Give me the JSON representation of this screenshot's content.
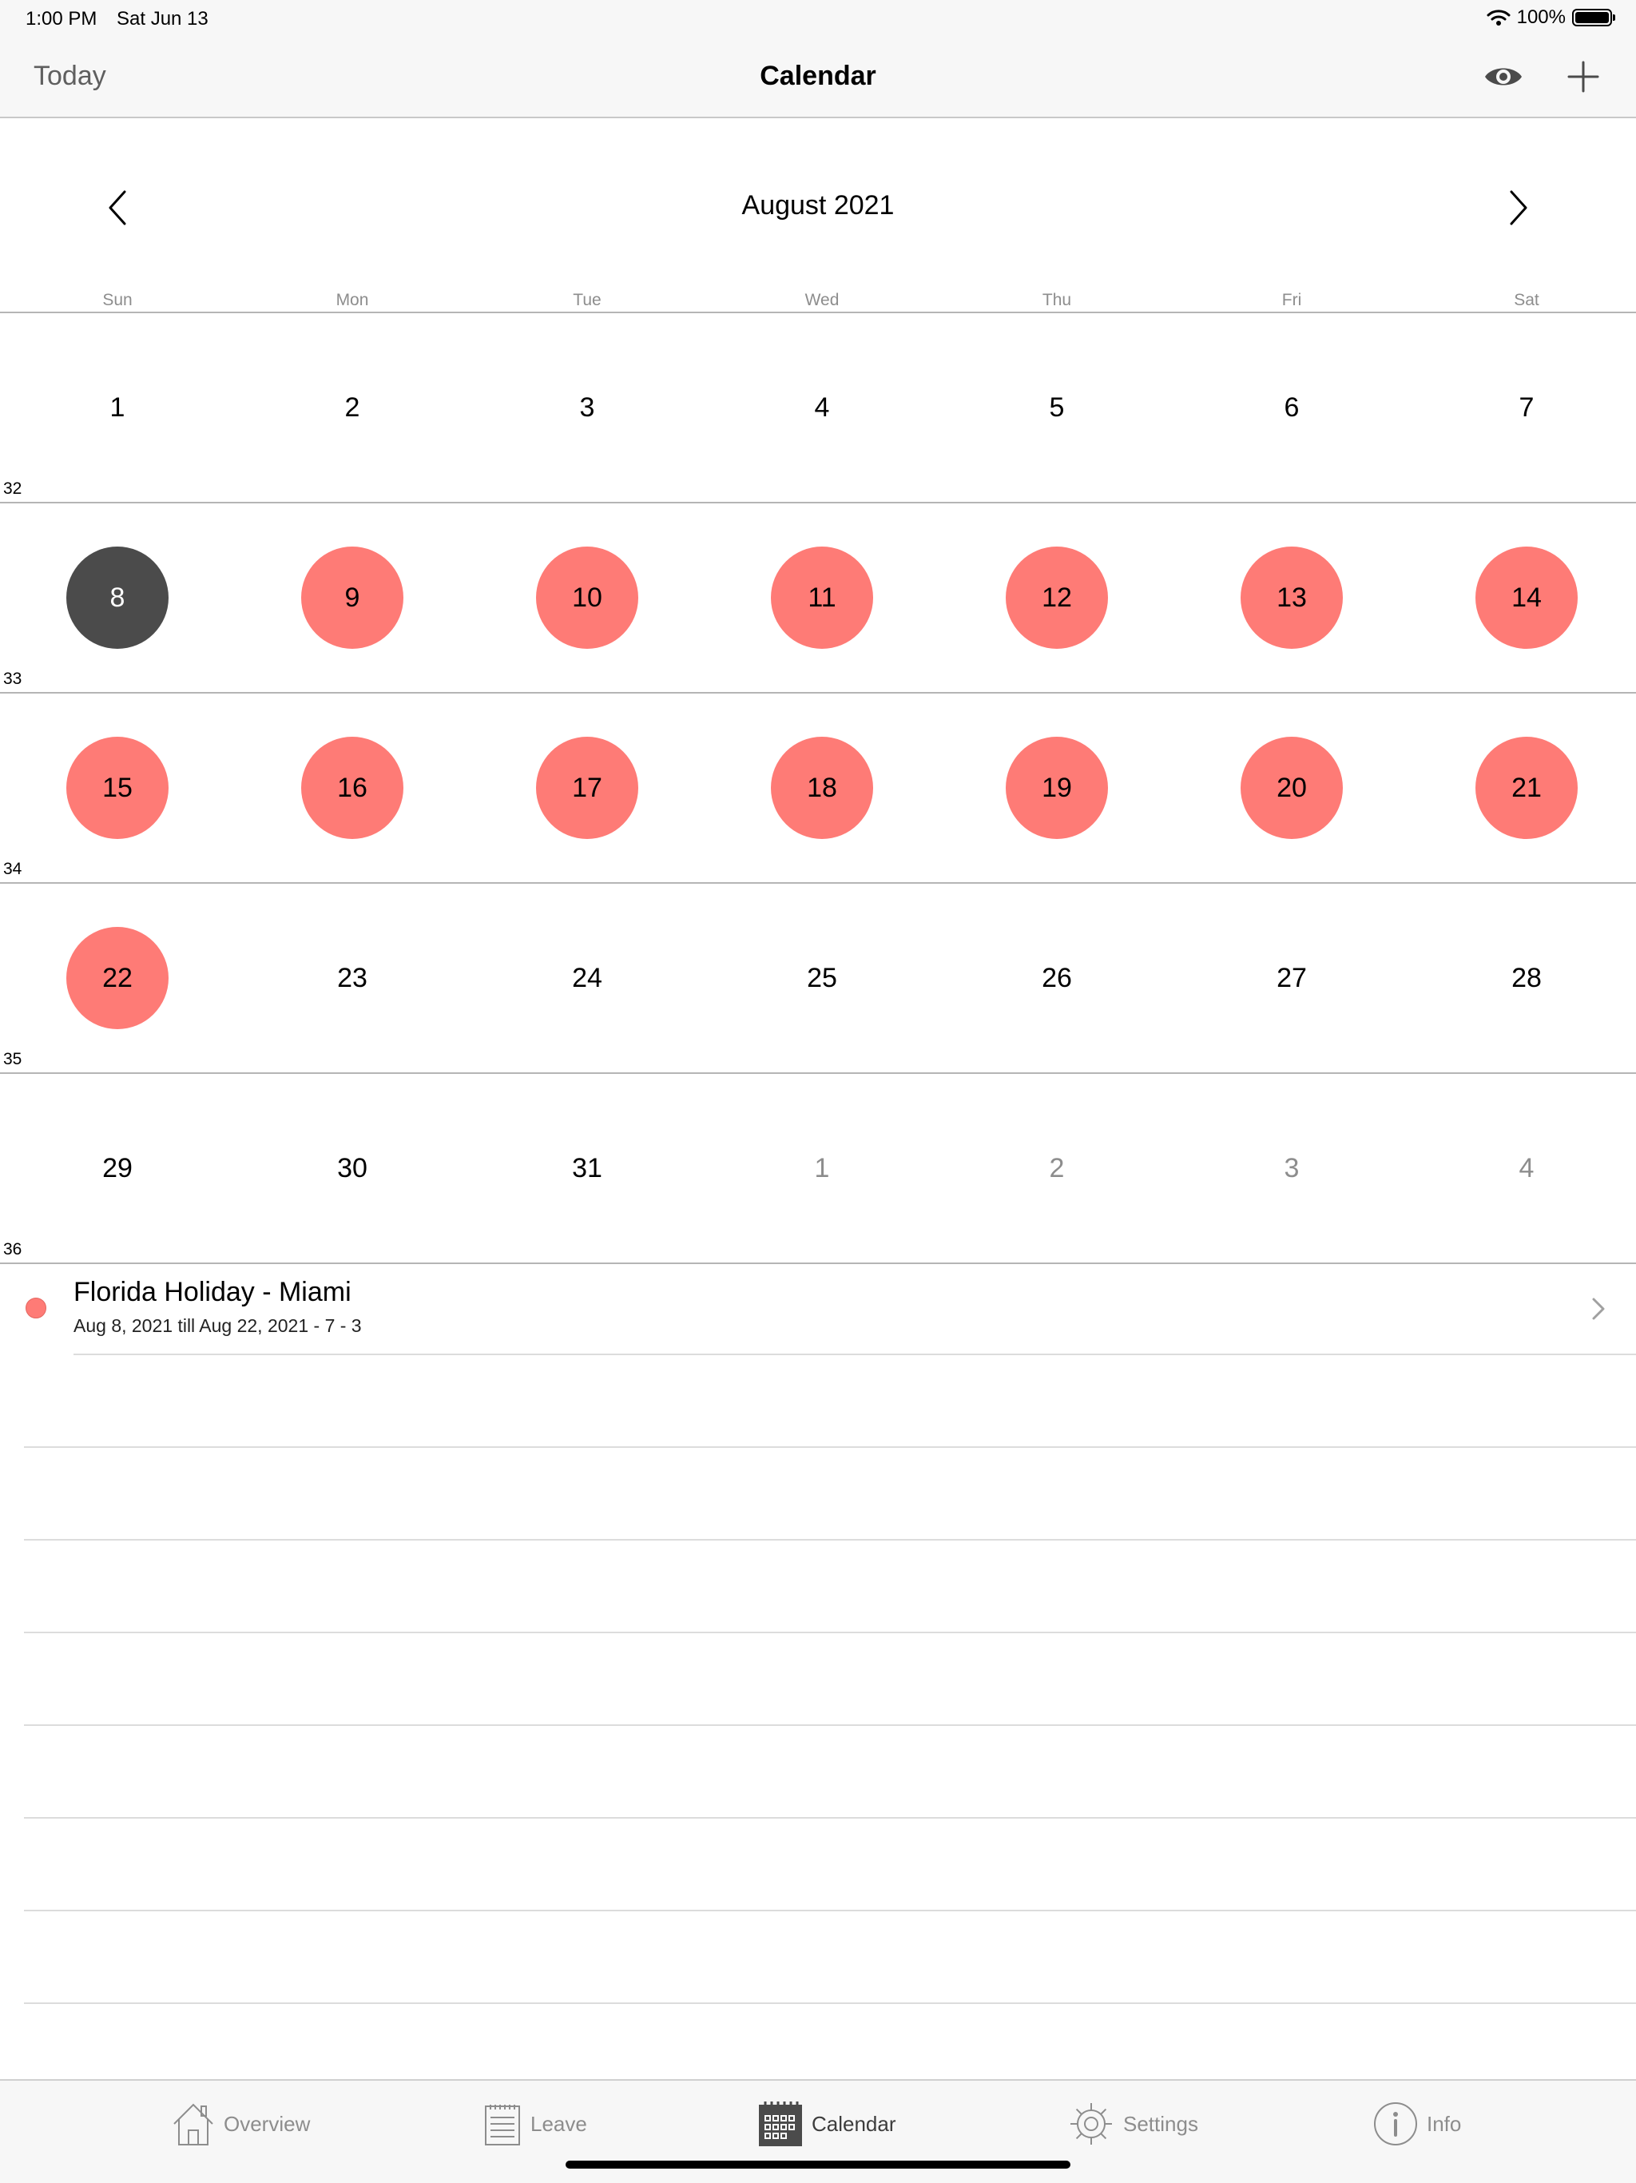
{
  "status_bar": {
    "time": "1:00 PM",
    "date": "Sat Jun 13",
    "battery": "100%"
  },
  "navbar": {
    "today_label": "Today",
    "title": "Calendar",
    "icons": [
      "eye-icon",
      "plus-icon"
    ]
  },
  "calendar": {
    "month_title": "August 2021",
    "weekdays": [
      "Sun",
      "Mon",
      "Tue",
      "Wed",
      "Thu",
      "Fri",
      "Sat"
    ],
    "week_numbers": [
      "32",
      "33",
      "34",
      "35",
      "36"
    ],
    "weeks": [
      [
        {
          "d": "1"
        },
        {
          "d": "2"
        },
        {
          "d": "3"
        },
        {
          "d": "4"
        },
        {
          "d": "5"
        },
        {
          "d": "6"
        },
        {
          "d": "7"
        }
      ],
      [
        {
          "d": "8",
          "state": "today"
        },
        {
          "d": "9",
          "state": "leave"
        },
        {
          "d": "10",
          "state": "leave"
        },
        {
          "d": "11",
          "state": "leave"
        },
        {
          "d": "12",
          "state": "leave"
        },
        {
          "d": "13",
          "state": "leave"
        },
        {
          "d": "14",
          "state": "leave"
        }
      ],
      [
        {
          "d": "15",
          "state": "leave"
        },
        {
          "d": "16",
          "state": "leave"
        },
        {
          "d": "17",
          "state": "leave"
        },
        {
          "d": "18",
          "state": "leave"
        },
        {
          "d": "19",
          "state": "leave"
        },
        {
          "d": "20",
          "state": "leave"
        },
        {
          "d": "21",
          "state": "leave"
        }
      ],
      [
        {
          "d": "22",
          "state": "leave"
        },
        {
          "d": "23"
        },
        {
          "d": "24"
        },
        {
          "d": "25"
        },
        {
          "d": "26"
        },
        {
          "d": "27"
        },
        {
          "d": "28"
        }
      ],
      [
        {
          "d": "29"
        },
        {
          "d": "30"
        },
        {
          "d": "31"
        },
        {
          "d": "1",
          "state": "other"
        },
        {
          "d": "2",
          "state": "other"
        },
        {
          "d": "3",
          "state": "other"
        },
        {
          "d": "4",
          "state": "other"
        }
      ]
    ]
  },
  "events": [
    {
      "title": "Florida Holiday - Miami",
      "subtitle": "Aug 8, 2021 till Aug 22, 2021 - 7 - 3",
      "color": "#fe7b76"
    }
  ],
  "tabs": [
    {
      "label": "Overview",
      "icon": "home-icon",
      "active": false
    },
    {
      "label": "Leave",
      "icon": "list-icon",
      "active": false
    },
    {
      "label": "Calendar",
      "icon": "calendar-icon",
      "active": true
    },
    {
      "label": "Settings",
      "icon": "gear-icon",
      "active": false
    },
    {
      "label": "Info",
      "icon": "info-icon",
      "active": false
    }
  ],
  "colors": {
    "leave": "#fe7b76",
    "today": "#4b4b4b",
    "bar_background": "#f7f7f7"
  }
}
